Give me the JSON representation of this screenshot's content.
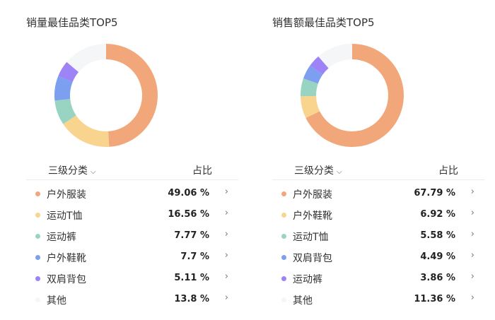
{
  "panels": [
    {
      "title": "销量最佳品类TOP5",
      "header_category": "三级分类",
      "header_share": "占比",
      "items": [
        {
          "label": "户外服装",
          "value": "49.06 %",
          "color": "#f2a77a"
        },
        {
          "label": "运动T恤",
          "value": "16.56 %",
          "color": "#f8d48e"
        },
        {
          "label": "运动裤",
          "value": "7.77 %",
          "color": "#98d4c1"
        },
        {
          "label": "户外鞋靴",
          "value": "7.7 %",
          "color": "#7c9ff0"
        },
        {
          "label": "双肩背包",
          "value": "5.11 %",
          "color": "#9d83f5"
        },
        {
          "label": "其他",
          "value": "13.8 %",
          "color": "#f5f6f8"
        }
      ]
    },
    {
      "title": "销售额最佳品类TOP5",
      "header_category": "三级分类",
      "header_share": "占比",
      "items": [
        {
          "label": "户外服装",
          "value": "67.79 %",
          "color": "#f2a77a"
        },
        {
          "label": "户外鞋靴",
          "value": "6.92 %",
          "color": "#f8d48e"
        },
        {
          "label": "运动T恤",
          "value": "5.58 %",
          "color": "#98d4c1"
        },
        {
          "label": "双肩背包",
          "value": "4.49 %",
          "color": "#7c9ff0"
        },
        {
          "label": "运动裤",
          "value": "3.86 %",
          "color": "#9d83f5"
        },
        {
          "label": "其他",
          "value": "11.36 %",
          "color": "#f5f6f8"
        }
      ]
    }
  ],
  "chart_data": [
    {
      "type": "pie",
      "title": "销量最佳品类TOP5",
      "categories": [
        "户外服装",
        "运动T恤",
        "运动裤",
        "户外鞋靴",
        "双肩背包",
        "其他"
      ],
      "values": [
        49.06,
        16.56,
        7.77,
        7.7,
        5.11,
        13.8
      ],
      "colors": [
        "#f2a77a",
        "#f8d48e",
        "#98d4c1",
        "#7c9ff0",
        "#9d83f5",
        "#f5f6f8"
      ]
    },
    {
      "type": "pie",
      "title": "销售额最佳品类TOP5",
      "categories": [
        "户外服装",
        "户外鞋靴",
        "运动T恤",
        "双肩背包",
        "运动裤",
        "其他"
      ],
      "values": [
        67.79,
        6.92,
        5.58,
        4.49,
        3.86,
        11.36
      ],
      "colors": [
        "#f2a77a",
        "#f8d48e",
        "#98d4c1",
        "#7c9ff0",
        "#9d83f5",
        "#f5f6f8"
      ]
    }
  ]
}
